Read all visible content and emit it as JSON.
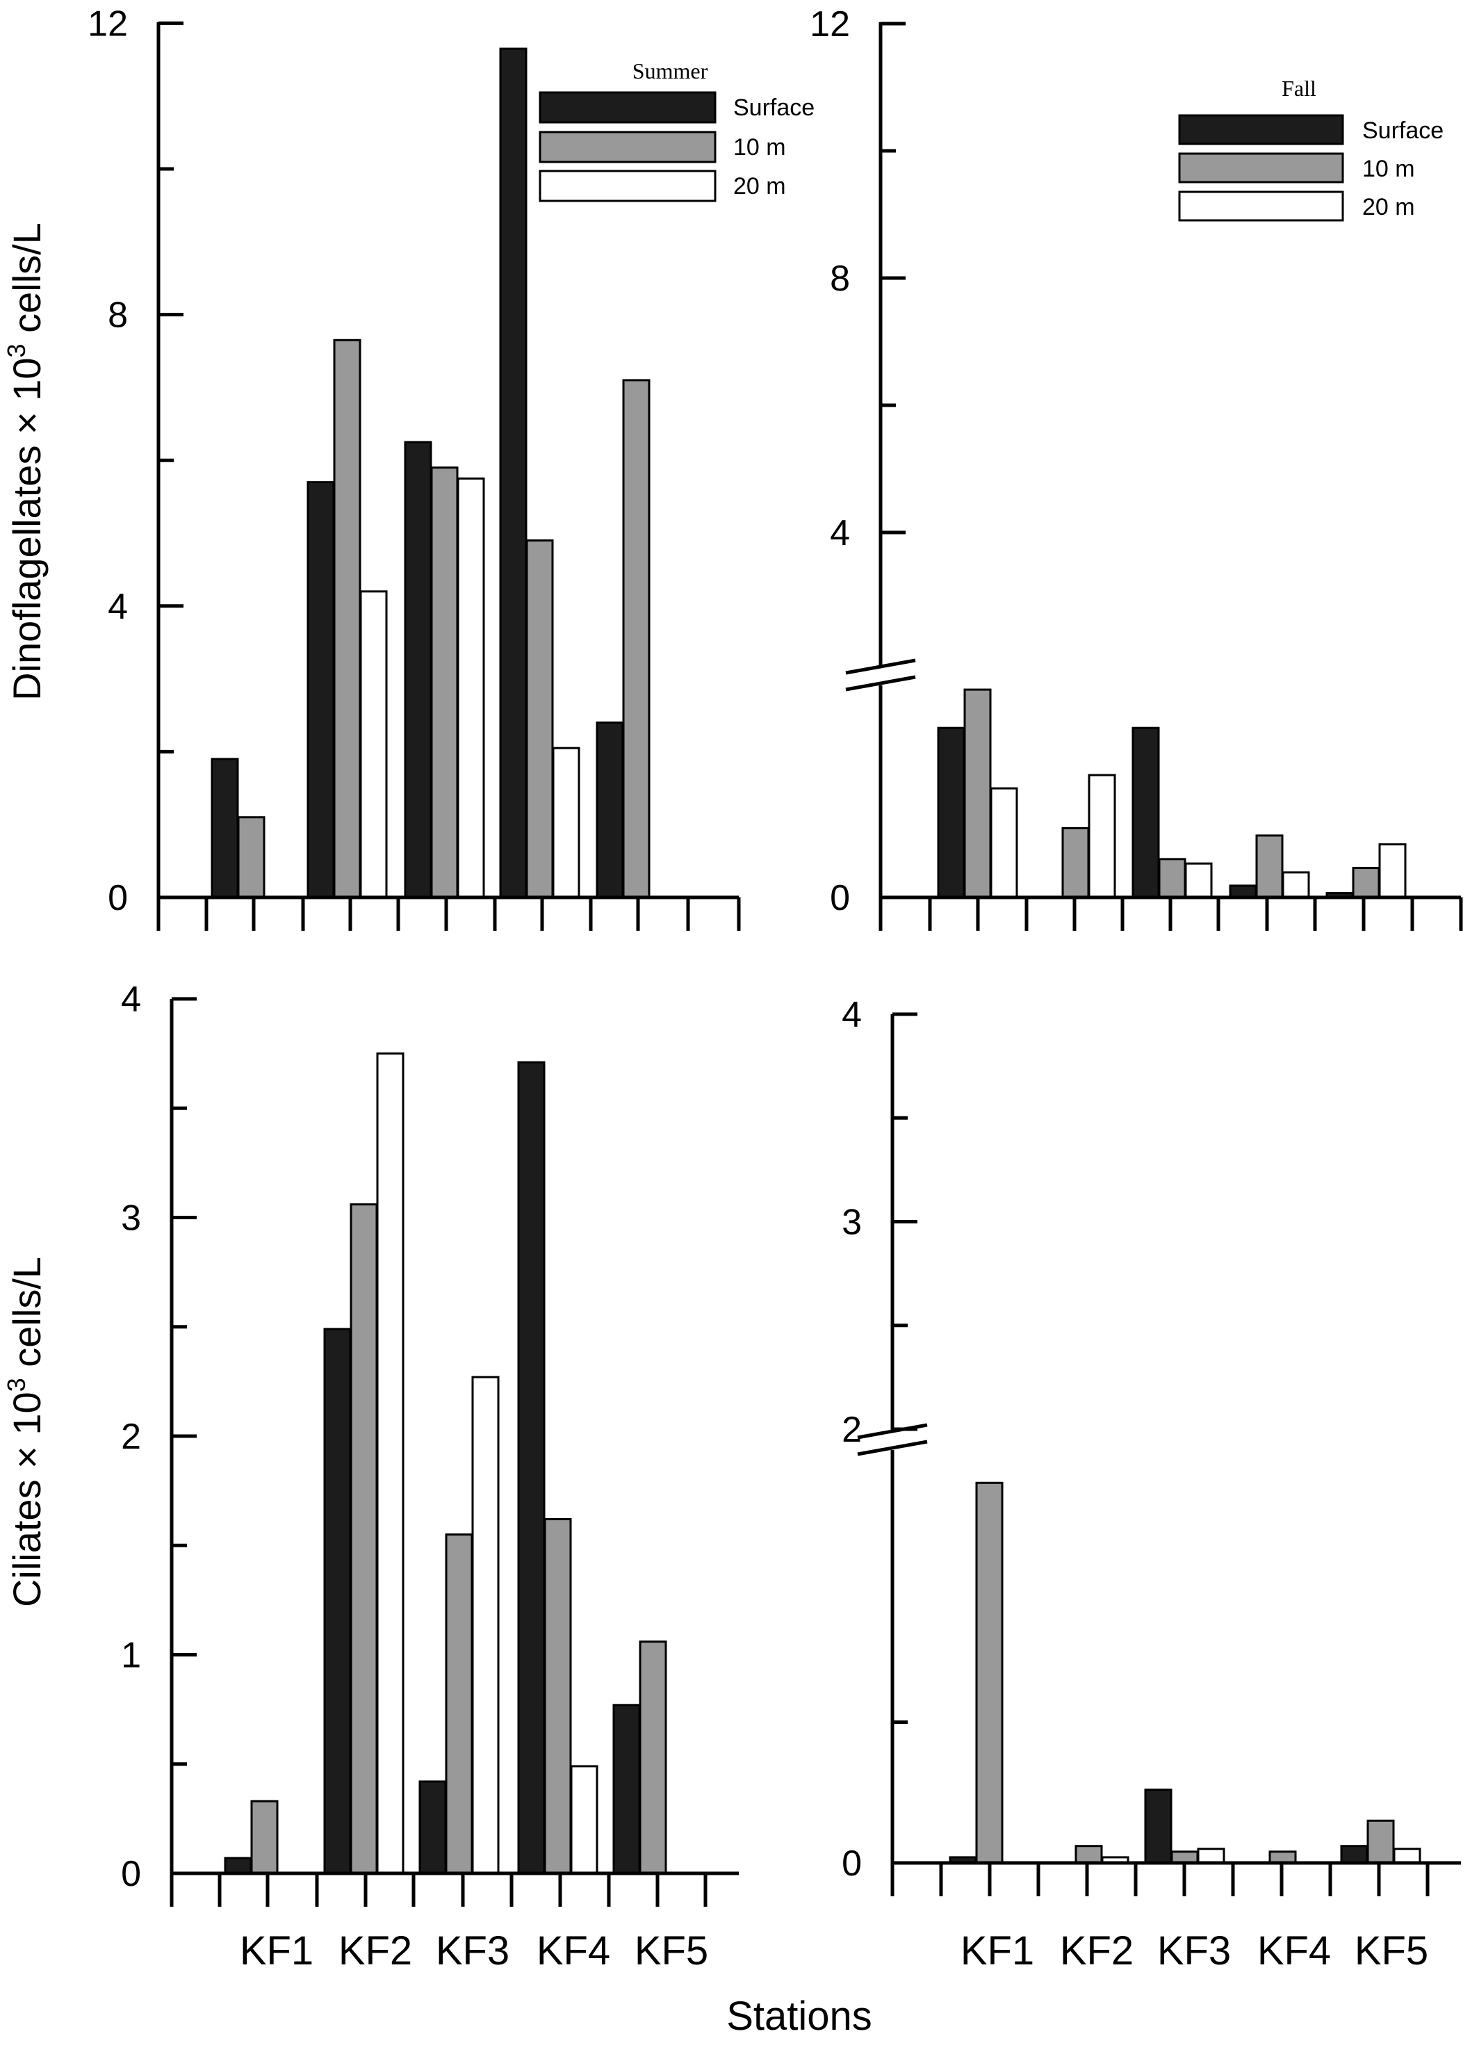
{
  "colors": {
    "surface": "#1c1c1c",
    "m10": "#999999",
    "m20": "#ffffff",
    "axis": "#000000"
  },
  "labels": {
    "xlabel": "Stations"
  },
  "chart_data": [
    {
      "id": "summer-dino",
      "type": "bar",
      "legend_title": "Summer",
      "legend_position": "top-right",
      "series_names": [
        "Surface",
        "10 m",
        "20 m"
      ],
      "categories": [
        "KF1",
        "KF2",
        "KF3",
        "KF4",
        "KF5"
      ],
      "show_category_labels": false,
      "ylabel_parts": [
        "Dinoflagellates × 10",
        "3",
        " cells/L"
      ],
      "ylim": [
        0,
        12
      ],
      "yticks": [
        "0",
        "4",
        "8",
        "12"
      ],
      "series": [
        {
          "name": "Surface",
          "values": [
            1.9,
            5.7,
            6.25,
            11.65,
            2.4
          ]
        },
        {
          "name": "10 m",
          "values": [
            1.1,
            7.65,
            5.9,
            4.9,
            7.1
          ]
        },
        {
          "name": "20 m",
          "values": [
            0,
            4.2,
            5.75,
            2.05,
            0
          ]
        }
      ]
    },
    {
      "id": "fall-dino",
      "type": "bar",
      "legend_title": "Fall",
      "legend_position": "top-right",
      "series_names": [
        "Surface",
        "10 m",
        "20 m"
      ],
      "categories": [
        "KF1",
        "KF2",
        "KF3",
        "KF4",
        "KF5"
      ],
      "show_category_labels": false,
      "axis_break": true,
      "yticks": [
        "0",
        "4",
        "8",
        "12"
      ],
      "series": [
        {
          "name": "Surface",
          "values": [
            1.15,
            0,
            1.15,
            0.08,
            0.03
          ]
        },
        {
          "name": "10 m",
          "values": [
            1.41,
            0.47,
            0.26,
            0.42,
            0.2
          ]
        },
        {
          "name": "20 m",
          "values": [
            0.74,
            0.83,
            0.23,
            0.17,
            0.36
          ]
        }
      ]
    },
    {
      "id": "summer-ciliates",
      "type": "bar",
      "categories": [
        "KF1",
        "KF2",
        "KF3",
        "KF4",
        "KF5"
      ],
      "show_category_labels": true,
      "ylabel_parts": [
        "Ciliates × 10",
        "3",
        " cells/L"
      ],
      "ylim": [
        0,
        4
      ],
      "yticks": [
        "0",
        "1",
        "2",
        "3",
        "4"
      ],
      "series": [
        {
          "name": "Surface",
          "values": [
            0.07,
            2.49,
            0.42,
            3.71,
            0.77
          ]
        },
        {
          "name": "10 m",
          "values": [
            0.33,
            3.06,
            1.55,
            1.62,
            1.06
          ]
        },
        {
          "name": "20 m",
          "values": [
            0,
            3.75,
            2.27,
            0.49,
            0
          ]
        }
      ]
    },
    {
      "id": "fall-ciliates",
      "type": "bar",
      "categories": [
        "KF1",
        "KF2",
        "KF3",
        "KF4",
        "KF5"
      ],
      "show_category_labels": true,
      "axis_break": true,
      "yticks": [
        "0",
        "2",
        "3",
        "4"
      ],
      "series": [
        {
          "name": "Surface",
          "values": [
            0.02,
            0,
            0.26,
            0,
            0.06
          ]
        },
        {
          "name": "10 m",
          "values": [
            1.35,
            0.06,
            0.04,
            0.04,
            0.15
          ]
        },
        {
          "name": "20 m",
          "values": [
            0,
            0.02,
            0.05,
            0,
            0.05
          ]
        }
      ]
    }
  ]
}
